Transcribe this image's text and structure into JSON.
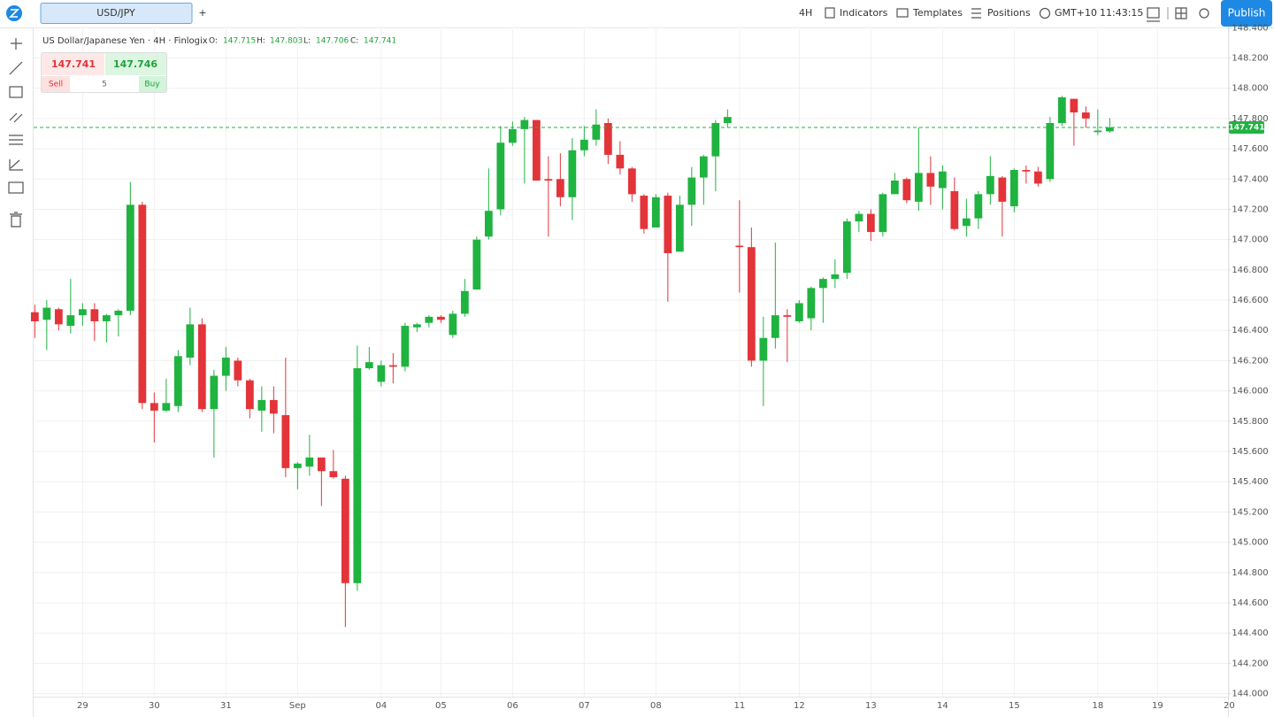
{
  "toolbar": {
    "tab": "USD/JPY",
    "add": "+",
    "interval": "4H",
    "indicators": "Indicators",
    "templates": "Templates",
    "positions": "Positions",
    "timezone": "GMT+10",
    "clock": "11:43:15",
    "publish": "Publish"
  },
  "symbol_info": {
    "name": "US Dollar/Japanese Yen · 4H · Finlogix",
    "o": "O:",
    "h": "H:",
    "l": "L:",
    "c": "C:"
  },
  "trade_widget": {
    "sell_price": "147.741",
    "buy_price": "147.746",
    "sell": "Sell",
    "quantity": "5",
    "buy": "Buy"
  },
  "chart_data": {
    "type": "candlestick",
    "up_color": "#1fb340",
    "down_color": "#e3343a",
    "grid": true,
    "xlim": [
      -0.1,
      99.9
    ],
    "ylim": [
      143.98,
      148.39
    ],
    "xticks": [
      {
        "value": 4,
        "label": "29"
      },
      {
        "value": 10,
        "label": "30"
      },
      {
        "value": 16,
        "label": "31"
      },
      {
        "value": 22,
        "label": "Sep"
      },
      {
        "value": 29,
        "label": "04"
      },
      {
        "value": 34,
        "label": "05"
      },
      {
        "value": 40,
        "label": "06"
      },
      {
        "value": 46,
        "label": "07"
      },
      {
        "value": 52,
        "label": "08"
      },
      {
        "value": 59,
        "label": "11"
      },
      {
        "value": 64,
        "label": "12"
      },
      {
        "value": 70,
        "label": "13"
      },
      {
        "value": 76,
        "label": "14"
      },
      {
        "value": 82,
        "label": "15"
      },
      {
        "value": 89,
        "label": "18"
      },
      {
        "value": 94,
        "label": "19"
      },
      {
        "value": 100,
        "label": "20"
      }
    ],
    "yticks": [
      {
        "value": 144.0,
        "label": "144.000"
      },
      {
        "value": 144.2,
        "label": "144.200"
      },
      {
        "value": 144.4,
        "label": "144.400"
      },
      {
        "value": 144.6,
        "label": "144.600"
      },
      {
        "value": 144.8,
        "label": "144.800"
      },
      {
        "value": 145.0,
        "label": "145.000"
      },
      {
        "value": 145.2,
        "label": "145.200"
      },
      {
        "value": 145.4,
        "label": "145.400"
      },
      {
        "value": 145.6,
        "label": "145.600"
      },
      {
        "value": 145.8,
        "label": "145.800"
      },
      {
        "value": 146.0,
        "label": "146.000"
      },
      {
        "value": 146.2,
        "label": "146.200"
      },
      {
        "value": 146.4,
        "label": "146.400"
      },
      {
        "value": 146.6,
        "label": "146.600"
      },
      {
        "value": 146.8,
        "label": "146.800"
      },
      {
        "value": 147.0,
        "label": "147.000"
      },
      {
        "value": 147.2,
        "label": "147.200"
      },
      {
        "value": 147.4,
        "label": "147.400"
      },
      {
        "value": 147.6,
        "label": "147.600"
      },
      {
        "value": 147.8,
        "label": "147.800"
      },
      {
        "value": 148.0,
        "label": "148.000"
      },
      {
        "value": 148.2,
        "label": "148.200"
      },
      {
        "value": 148.4,
        "label": "148.400"
      }
    ],
    "open": [
      146.52,
      146.47,
      146.54,
      146.43,
      146.5,
      146.54,
      146.46,
      146.5,
      146.53,
      147.23,
      145.92,
      145.87,
      145.9,
      146.22,
      146.44,
      145.88,
      146.1,
      146.2,
      146.07,
      145.87,
      145.94,
      145.84,
      145.49,
      145.5,
      145.56,
      145.47,
      145.42,
      144.73,
      146.15,
      146.06,
      146.17,
      146.16,
      146.42,
      146.45,
      146.49,
      146.37,
      146.51,
      146.67,
      147.02,
      147.2,
      147.64,
      147.73,
      147.79,
      147.4,
      147.4,
      147.28,
      147.59,
      147.66,
      147.77,
      147.56,
      147.47,
      147.29,
      147.08,
      147.29,
      146.92,
      147.23,
      147.41,
      147.55,
      147.77,
      146.96,
      146.95,
      146.2,
      146.35,
      146.5,
      146.46,
      146.48,
      146.68,
      146.74,
      146.78,
      147.12,
      147.17,
      147.05,
      147.3,
      147.4,
      147.25,
      147.44,
      147.34,
      147.32,
      147.09,
      147.14,
      147.3,
      147.41,
      147.22,
      147.46,
      147.45,
      147.4,
      147.77,
      147.93,
      147.84,
      147.71,
      147.715
    ],
    "high": [
      146.57,
      146.6,
      146.55,
      146.74,
      146.58,
      146.58,
      146.51,
      146.54,
      147.38,
      147.25,
      145.99,
      146.08,
      146.27,
      146.55,
      146.48,
      146.14,
      146.29,
      146.22,
      146.08,
      146.03,
      146.03,
      146.22,
      145.53,
      145.71,
      145.56,
      145.61,
      145.44,
      146.3,
      146.29,
      146.2,
      146.25,
      146.45,
      146.45,
      146.5,
      146.5,
      146.53,
      146.74,
      147.02,
      147.47,
      147.75,
      147.78,
      147.81,
      147.78,
      147.55,
      147.57,
      147.67,
      147.75,
      147.86,
      147.8,
      147.65,
      147.48,
      147.3,
      147.3,
      147.31,
      147.29,
      147.48,
      147.56,
      147.79,
      147.86,
      147.26,
      147.08,
      146.49,
      146.98,
      146.54,
      146.6,
      146.69,
      146.75,
      146.87,
      147.14,
      147.19,
      147.2,
      147.31,
      147.44,
      147.41,
      147.74,
      147.55,
      147.49,
      147.41,
      147.27,
      147.32,
      147.55,
      147.42,
      147.47,
      147.49,
      147.48,
      147.81,
      147.95,
      147.93,
      147.88,
      147.86,
      147.803
    ],
    "low": [
      146.35,
      146.27,
      146.4,
      146.38,
      146.43,
      146.33,
      146.32,
      146.36,
      146.5,
      145.88,
      145.66,
      145.86,
      145.86,
      146.17,
      145.86,
      145.56,
      146.0,
      146.03,
      145.82,
      145.73,
      145.72,
      145.43,
      145.35,
      145.44,
      145.24,
      145.42,
      144.44,
      144.68,
      146.14,
      146.03,
      146.05,
      146.13,
      146.39,
      146.42,
      146.45,
      146.35,
      146.49,
      146.67,
      147.0,
      147.16,
      147.62,
      147.37,
      147.39,
      147.02,
      147.22,
      147.13,
      147.55,
      147.62,
      147.5,
      147.43,
      147.25,
      147.04,
      147.08,
      146.59,
      146.92,
      147.09,
      147.23,
      147.32,
      147.74,
      146.65,
      146.16,
      145.9,
      146.28,
      146.19,
      146.45,
      146.4,
      146.45,
      146.68,
      146.74,
      147.05,
      146.99,
      147.02,
      147.31,
      147.24,
      147.19,
      147.23,
      147.2,
      147.06,
      147.02,
      147.07,
      147.23,
      147.02,
      147.18,
      147.37,
      147.35,
      147.38,
      147.75,
      147.62,
      147.74,
      147.69,
      147.706
    ],
    "close": [
      146.46,
      146.55,
      146.44,
      146.5,
      146.54,
      146.46,
      146.5,
      146.53,
      147.23,
      145.92,
      145.87,
      145.92,
      146.23,
      146.44,
      145.88,
      146.1,
      146.22,
      146.07,
      145.88,
      145.94,
      145.85,
      145.49,
      145.52,
      145.56,
      145.47,
      145.43,
      144.73,
      146.15,
      146.19,
      146.17,
      146.16,
      146.43,
      146.44,
      146.49,
      146.47,
      146.51,
      146.66,
      147.0,
      147.19,
      147.64,
      147.73,
      147.79,
      147.39,
      147.39,
      147.28,
      147.59,
      147.66,
      147.76,
      147.56,
      147.47,
      147.3,
      147.07,
      147.28,
      146.91,
      147.23,
      147.41,
      147.55,
      147.77,
      147.81,
      146.95,
      146.2,
      146.35,
      146.5,
      146.49,
      146.58,
      146.68,
      146.74,
      146.77,
      147.12,
      147.17,
      147.05,
      147.3,
      147.39,
      147.26,
      147.44,
      147.35,
      147.45,
      147.07,
      147.14,
      147.3,
      147.42,
      147.25,
      147.46,
      147.45,
      147.37,
      147.77,
      147.94,
      147.84,
      147.8,
      147.72,
      147.741
    ]
  }
}
